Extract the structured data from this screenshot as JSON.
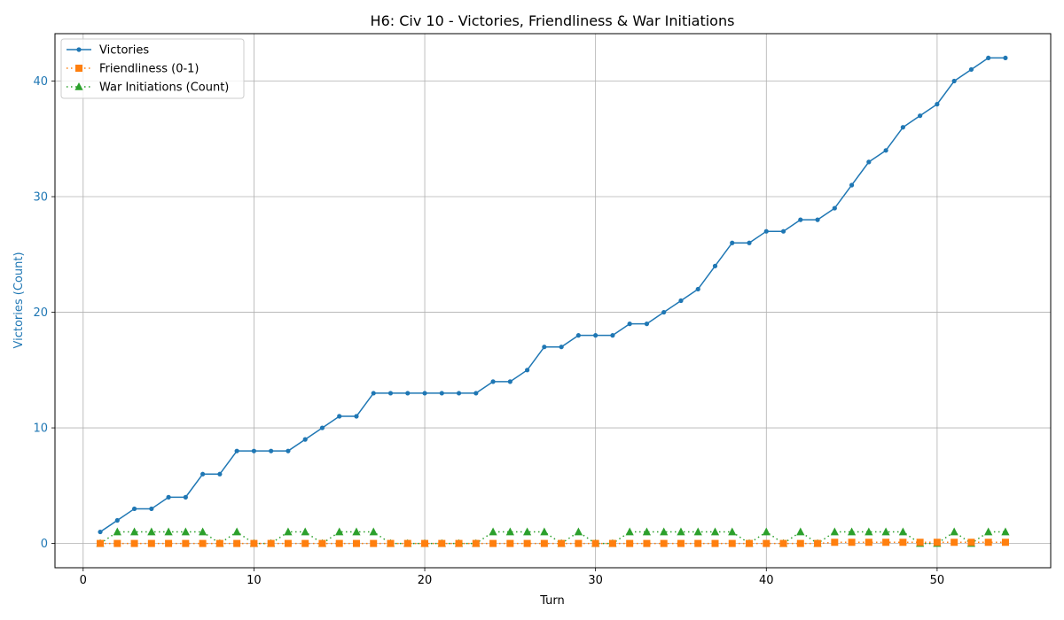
{
  "chart_data": {
    "type": "line",
    "title": "H6: Civ 10 - Victories, Friendliness & War Initiations",
    "xlabel": "Turn",
    "ylabel": "Victories (Count)",
    "xlim": [
      -1.65,
      56.65
    ],
    "ylim": [
      -2.1,
      44.1
    ],
    "x_ticks": [
      0,
      10,
      20,
      30,
      40,
      50
    ],
    "y_ticks": [
      0,
      10,
      20,
      30,
      40
    ],
    "grid": true,
    "legend_position": "upper left",
    "x": [
      1,
      2,
      3,
      4,
      5,
      6,
      7,
      8,
      9,
      10,
      11,
      12,
      13,
      14,
      15,
      16,
      17,
      18,
      19,
      20,
      21,
      22,
      23,
      24,
      25,
      26,
      27,
      28,
      29,
      30,
      31,
      32,
      33,
      34,
      35,
      36,
      37,
      38,
      39,
      40,
      41,
      42,
      43,
      44,
      45,
      46,
      47,
      48,
      49,
      50,
      51,
      52,
      53,
      54
    ],
    "series": [
      {
        "name": "Victories",
        "color": "#1f77b4",
        "line_style": "solid",
        "marker": "circle",
        "values": [
          1,
          2,
          3,
          3,
          4,
          4,
          6,
          6,
          8,
          8,
          8,
          8,
          9,
          10,
          11,
          11,
          13,
          13,
          13,
          13,
          13,
          13,
          13,
          14,
          14,
          15,
          17,
          17,
          18,
          18,
          18,
          19,
          19,
          20,
          21,
          22,
          24,
          26,
          26,
          27,
          27,
          28,
          28,
          29,
          31,
          33,
          34,
          36,
          37,
          38,
          40,
          41,
          42,
          42
        ]
      },
      {
        "name": "Friendliness (0-1)",
        "color": "#ff7f0e",
        "line_style": "dotted",
        "marker": "square",
        "values": [
          0,
          0,
          0,
          0,
          0,
          0,
          0,
          0,
          0,
          0,
          0,
          0,
          0,
          0,
          0,
          0,
          0,
          0,
          0,
          0,
          0,
          0,
          0,
          0,
          0,
          0,
          0,
          0,
          0,
          0,
          0,
          0,
          0,
          0,
          0,
          0,
          0,
          0,
          0,
          0,
          0,
          0,
          0,
          0.1,
          0.1,
          0.1,
          0.1,
          0.1,
          0.1,
          0.1,
          0.1,
          0.1,
          0.1,
          0.1
        ]
      },
      {
        "name": "War Initiations (Count)",
        "color": "#2ca02c",
        "line_style": "dotted",
        "marker": "triangle",
        "values": [
          0,
          1,
          1,
          1,
          1,
          1,
          1,
          0,
          1,
          0,
          0,
          1,
          1,
          0,
          1,
          1,
          1,
          0,
          0,
          0,
          0,
          0,
          0,
          1,
          1,
          1,
          1,
          0,
          1,
          0,
          0,
          1,
          1,
          1,
          1,
          1,
          1,
          1,
          0,
          1,
          0,
          1,
          0,
          1,
          1,
          1,
          1,
          1,
          0,
          0,
          1,
          0,
          1,
          1
        ]
      }
    ]
  }
}
